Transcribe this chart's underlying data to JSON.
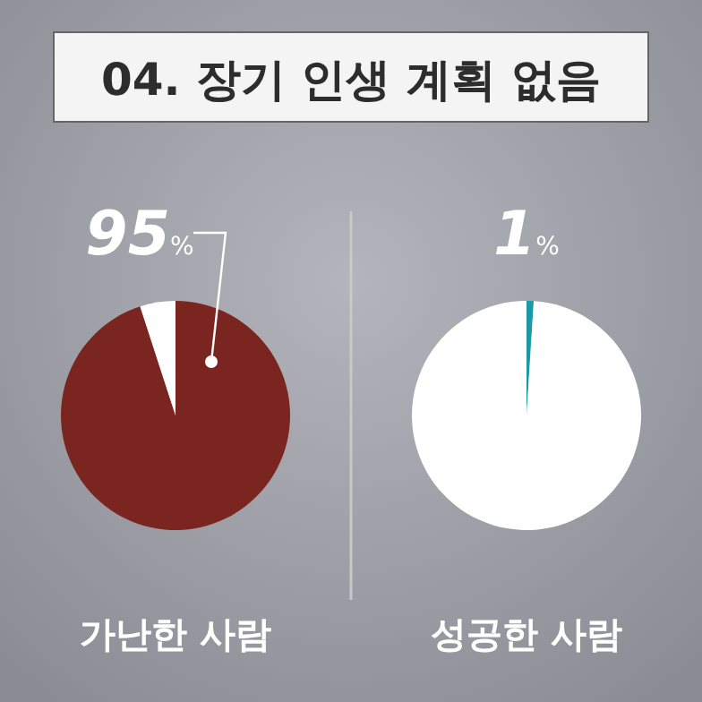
{
  "chart_data": [
    {
      "type": "pie",
      "title": "04. 장기 인생 계획 없음",
      "xlabel": "가난한 사람",
      "categories": [
        null,
        null
      ],
      "values": [
        95,
        5
      ],
      "colors": [
        "#7a2520",
        "#ffffff"
      ],
      "value_labels": [
        "95%",
        null
      ]
    },
    {
      "type": "pie",
      "xlabel": "성공한 사람",
      "categories": [
        null,
        null
      ],
      "values": [
        1,
        99
      ],
      "colors": [
        "#1a9aa5",
        "#ffffff"
      ],
      "value_labels": [
        "1%",
        null
      ]
    }
  ]
}
